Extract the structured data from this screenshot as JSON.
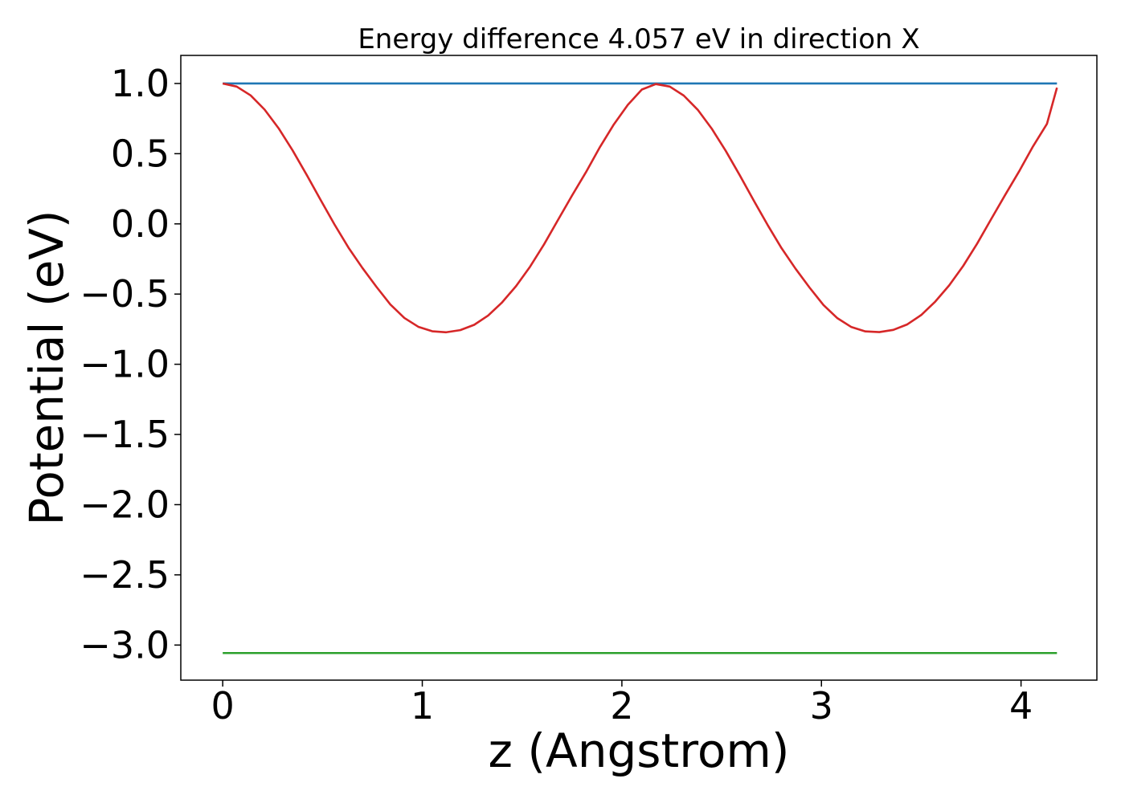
{
  "chart_data": {
    "type": "line",
    "title": "Energy difference 4.057 eV in direction X",
    "xlabel": "z (Angstrom)",
    "ylabel": "Potential (eV)",
    "xlim": [
      -0.21,
      4.38
    ],
    "ylim": [
      -3.25,
      1.2
    ],
    "xticks": [
      0,
      1,
      2,
      3,
      4
    ],
    "xtick_labels": [
      "0",
      "1",
      "2",
      "3",
      "4"
    ],
    "yticks": [
      1.0,
      0.5,
      0.0,
      -0.5,
      -1.0,
      -1.5,
      -2.0,
      -2.5,
      -3.0
    ],
    "ytick_labels": [
      "1.0",
      "0.5",
      "0.0",
      "−0.5",
      "−1.0",
      "−1.5",
      "−2.0",
      "−2.5",
      "−3.0"
    ],
    "grid": false,
    "series": [
      {
        "color": "#1f77b4",
        "x": [
          0,
          4.18
        ],
        "y": [
          1.0,
          1.0
        ]
      },
      {
        "color": "#2ca02c",
        "x": [
          0,
          4.18
        ],
        "y": [
          -3.057,
          -3.057
        ]
      },
      {
        "color": "#d62728",
        "x": [
          0.0,
          0.07,
          0.14,
          0.21,
          0.28,
          0.35,
          0.42,
          0.49,
          0.56,
          0.63,
          0.7,
          0.77,
          0.84,
          0.91,
          0.98,
          1.05,
          1.12,
          1.19,
          1.26,
          1.33,
          1.4,
          1.47,
          1.54,
          1.61,
          1.68,
          1.75,
          1.82,
          1.89,
          1.96,
          2.03,
          2.1,
          2.17,
          2.24,
          2.31,
          2.38,
          2.45,
          2.52,
          2.59,
          2.66,
          2.73,
          2.8,
          2.87,
          2.94,
          3.01,
          3.08,
          3.15,
          3.22,
          3.29,
          3.36,
          3.43,
          3.5,
          3.57,
          3.64,
          3.71,
          3.78,
          3.85,
          3.92,
          3.99,
          4.06,
          4.13,
          4.18
        ],
        "y": [
          1.0,
          0.978,
          0.915,
          0.814,
          0.681,
          0.524,
          0.351,
          0.172,
          -0.004,
          -0.169,
          -0.314,
          -0.448,
          -0.574,
          -0.67,
          -0.733,
          -0.765,
          -0.772,
          -0.757,
          -0.719,
          -0.653,
          -0.559,
          -0.443,
          -0.305,
          -0.146,
          0.028,
          0.201,
          0.368,
          0.547,
          0.709,
          0.848,
          0.957,
          0.996,
          0.978,
          0.914,
          0.813,
          0.679,
          0.521,
          0.348,
          0.168,
          -0.007,
          -0.173,
          -0.319,
          -0.453,
          -0.578,
          -0.672,
          -0.735,
          -0.766,
          -0.771,
          -0.755,
          -0.716,
          -0.649,
          -0.554,
          -0.438,
          -0.3,
          -0.141,
          0.033,
          0.205,
          0.373,
          0.552,
          0.713,
          0.97
        ]
      }
    ]
  }
}
